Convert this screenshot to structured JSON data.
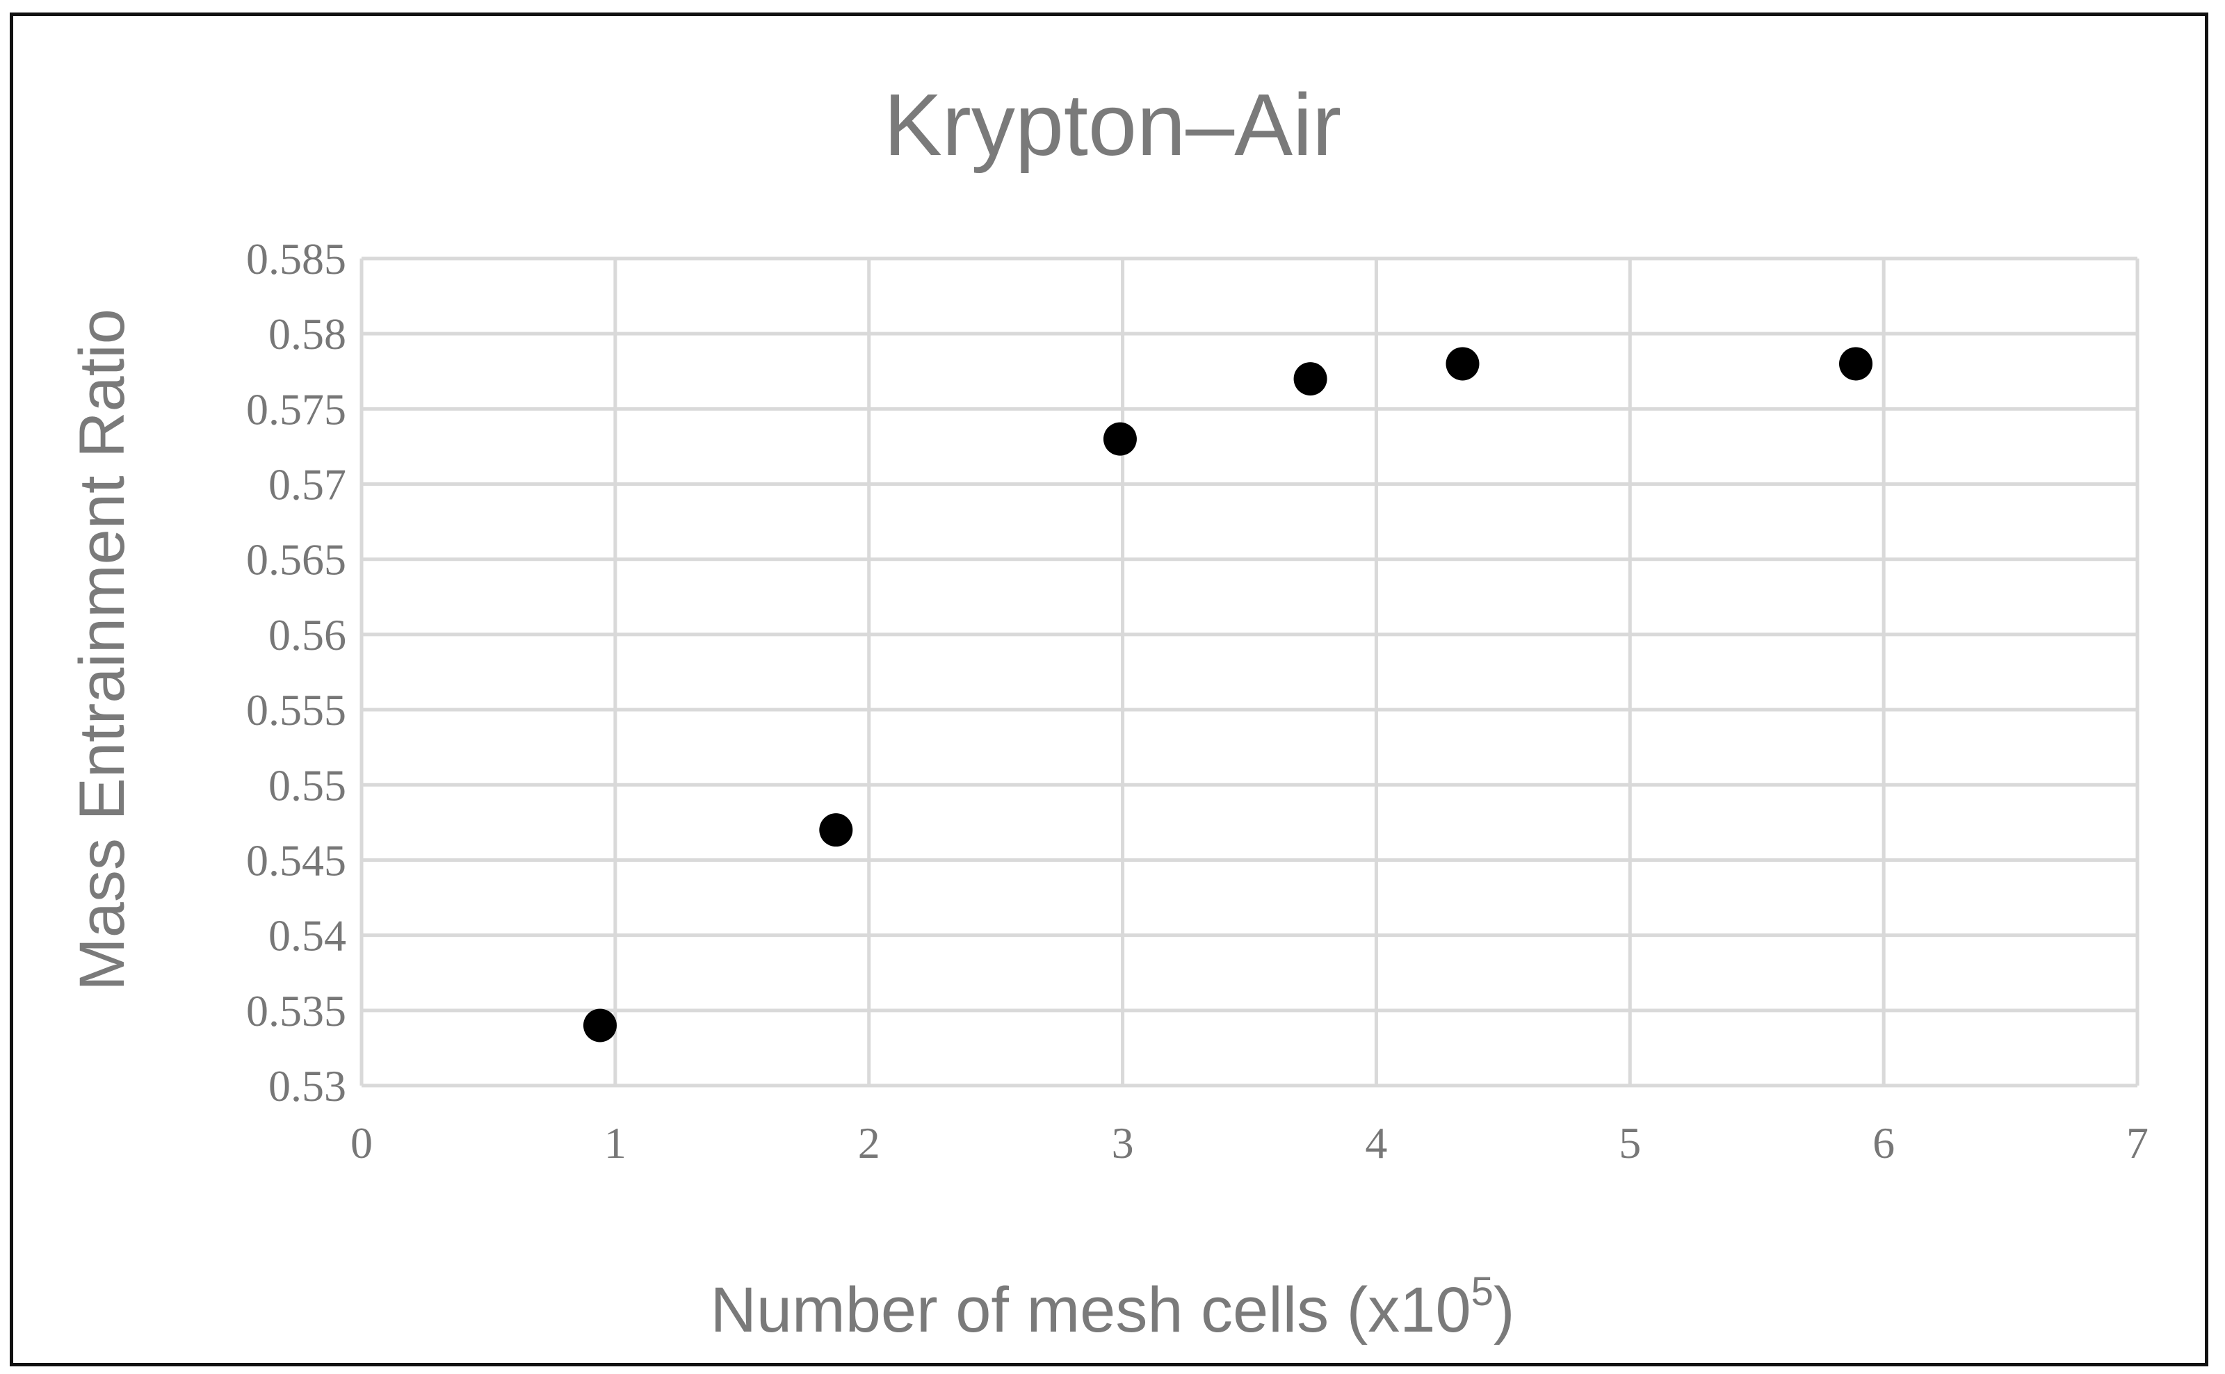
{
  "chart_data": {
    "type": "scatter",
    "title": "Krypton–Air",
    "xlabel": "Number of mesh cells (x10",
    "xlabel_superscript": "5",
    "xlabel_suffix": ")",
    "ylabel": "Mass Entrainment Ratio",
    "xlim": [
      0,
      7
    ],
    "ylim": [
      0.53,
      0.585
    ],
    "x_ticks": [
      "0",
      "1",
      "2",
      "3",
      "4",
      "5",
      "6",
      "7"
    ],
    "y_ticks": [
      "0.53",
      "0.535",
      "0.54",
      "0.545",
      "0.55",
      "0.555",
      "0.56",
      "0.565",
      "0.57",
      "0.575",
      "0.58",
      "0.585"
    ],
    "grid": true,
    "legend": "none",
    "series": [
      {
        "x": [
          0.94,
          1.87,
          2.99,
          3.74,
          4.34,
          5.89
        ],
        "y": [
          0.534,
          0.547,
          0.573,
          0.577,
          0.578,
          0.578
        ],
        "color": "#000000"
      }
    ],
    "colors": {
      "grid": "#d9d9d9",
      "text": "#7a7a7a",
      "marker": "#000000",
      "frame": "#111111"
    }
  }
}
